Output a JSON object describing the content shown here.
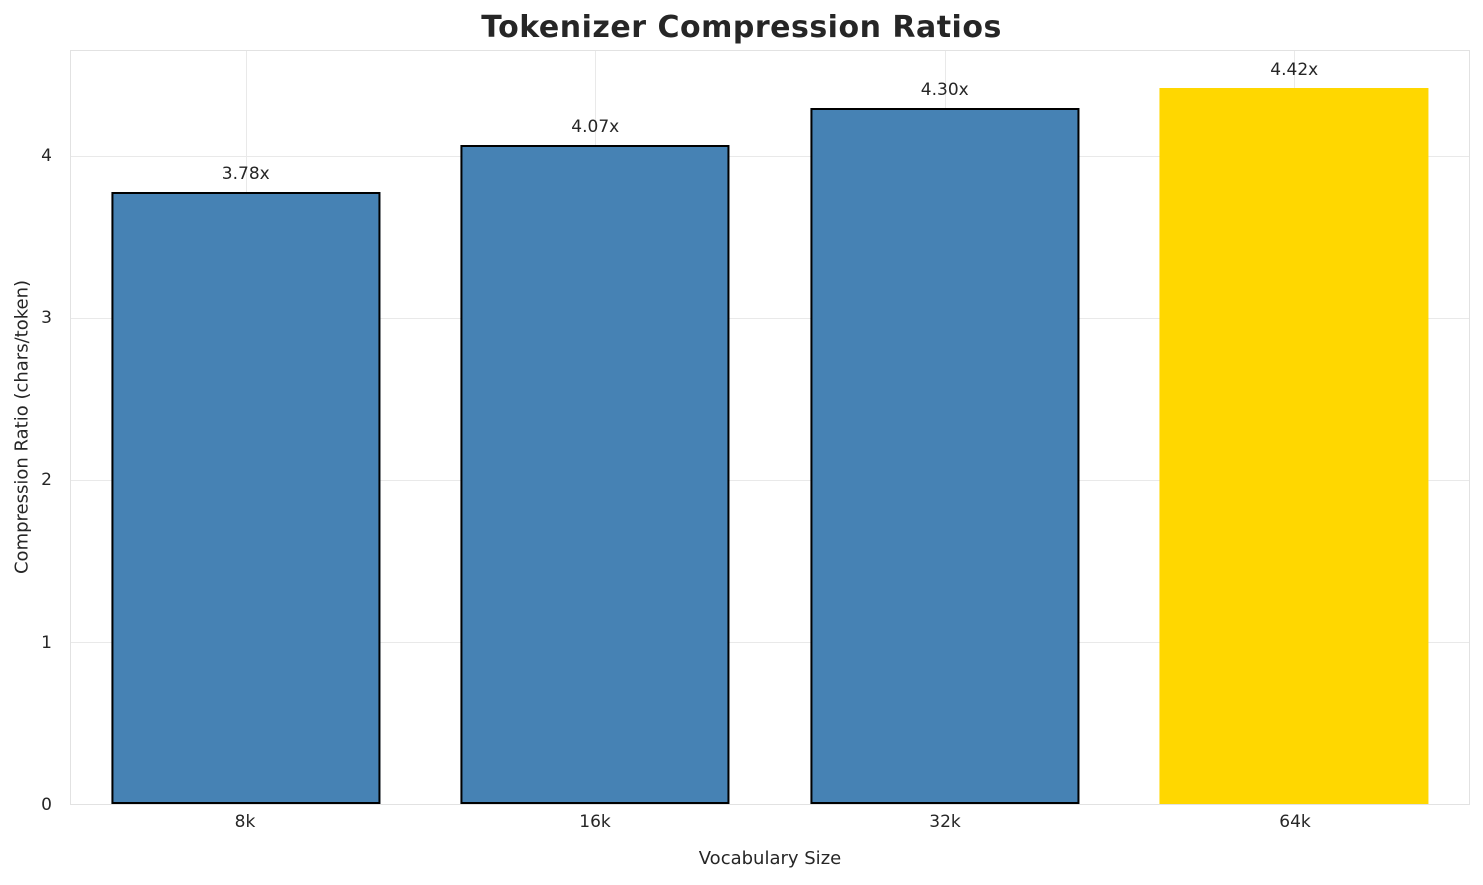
{
  "chart_data": {
    "type": "bar",
    "title": "Tokenizer Compression Ratios",
    "xlabel": "Vocabulary Size",
    "ylabel": "Compression Ratio (chars/token)",
    "categories": [
      "8k",
      "16k",
      "32k",
      "64k"
    ],
    "values": [
      3.78,
      4.07,
      4.3,
      4.42
    ],
    "value_labels": [
      "3.78x",
      "4.07x",
      "4.30x",
      "4.42x"
    ],
    "ylim": [
      0,
      4.65
    ],
    "yticks": [
      0,
      1,
      2,
      3,
      4
    ],
    "grid": true,
    "legend": "none",
    "bar_colors": [
      "#4682B4",
      "#4682B4",
      "#4682B4",
      "#FFD700"
    ],
    "bar_edge_colors": [
      "#000000",
      "#000000",
      "#000000",
      "none"
    ],
    "colors": {
      "bar_default": "#4682B4",
      "bar_highlight": "#FFD700",
      "text": "#262626",
      "gridline": "#e9e9e9"
    }
  }
}
